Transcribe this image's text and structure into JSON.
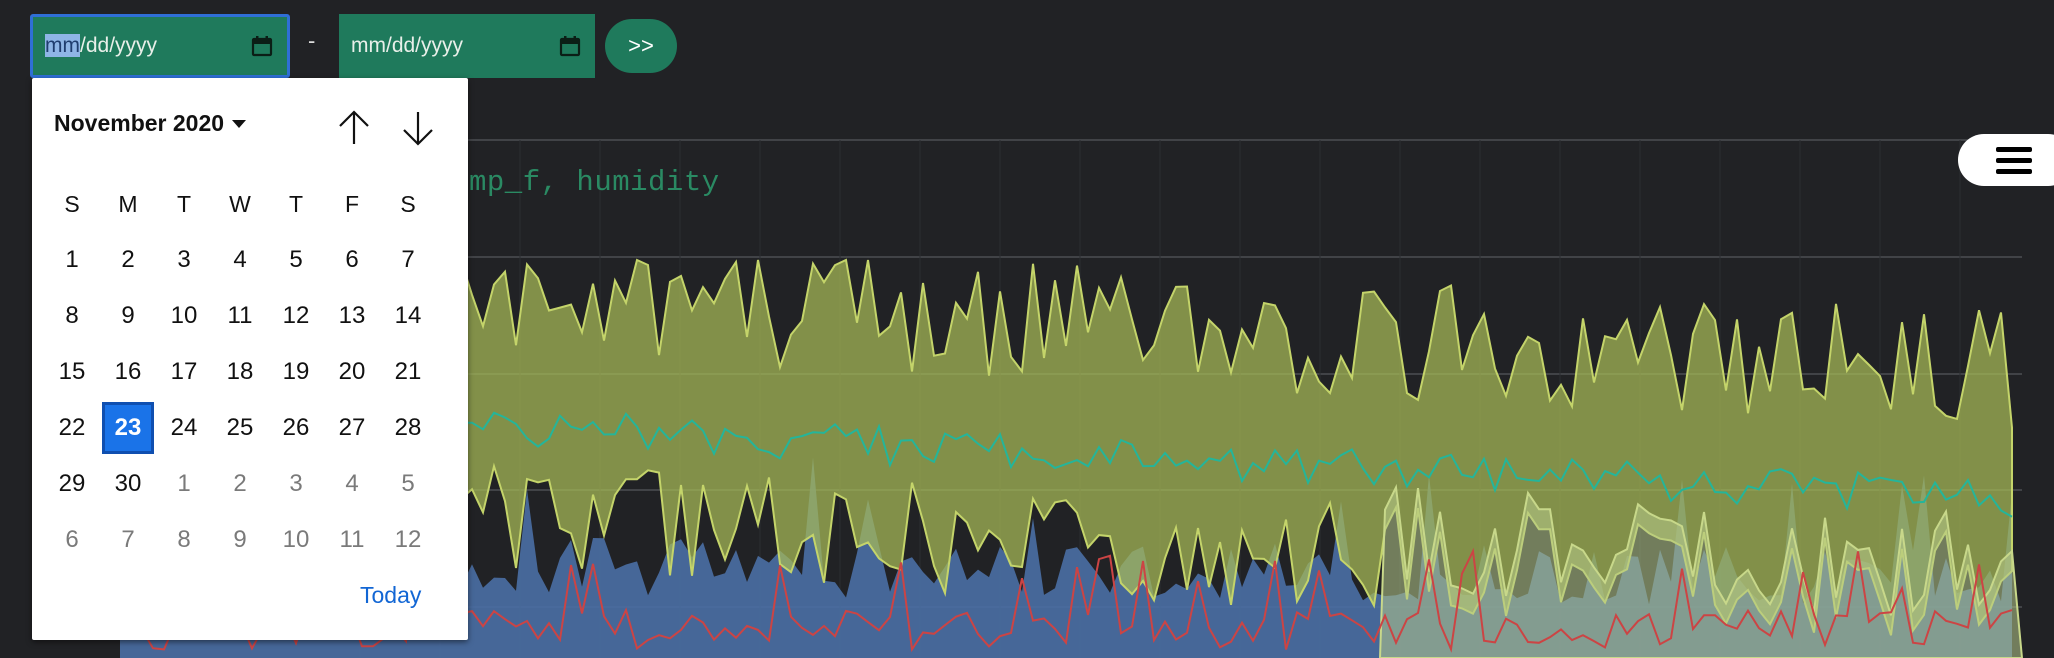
{
  "toolbar": {
    "start_placeholder_highlight": "mm",
    "start_placeholder_rest": "/dd/yyyy",
    "end_placeholder": "mm/dd/yyyy",
    "range_separator": "-",
    "go_label": ">>"
  },
  "chart": {
    "title_fragment": "mp_f, humidity"
  },
  "calendar": {
    "month_label": "November 2020",
    "weekdays": [
      "S",
      "M",
      "T",
      "W",
      "T",
      "F",
      "S"
    ],
    "weeks": [
      [
        {
          "d": "1"
        },
        {
          "d": "2"
        },
        {
          "d": "3"
        },
        {
          "d": "4"
        },
        {
          "d": "5"
        },
        {
          "d": "6"
        },
        {
          "d": "7"
        }
      ],
      [
        {
          "d": "8"
        },
        {
          "d": "9"
        },
        {
          "d": "10"
        },
        {
          "d": "11"
        },
        {
          "d": "12"
        },
        {
          "d": "13"
        },
        {
          "d": "14"
        }
      ],
      [
        {
          "d": "15"
        },
        {
          "d": "16"
        },
        {
          "d": "17"
        },
        {
          "d": "18"
        },
        {
          "d": "19"
        },
        {
          "d": "20"
        },
        {
          "d": "21"
        }
      ],
      [
        {
          "d": "22"
        },
        {
          "d": "23",
          "selected": true
        },
        {
          "d": "24"
        },
        {
          "d": "25"
        },
        {
          "d": "26"
        },
        {
          "d": "27"
        },
        {
          "d": "28"
        }
      ],
      [
        {
          "d": "29"
        },
        {
          "d": "30"
        },
        {
          "d": "1",
          "muted": true
        },
        {
          "d": "2",
          "muted": true
        },
        {
          "d": "3",
          "muted": true
        },
        {
          "d": "4",
          "muted": true
        },
        {
          "d": "5",
          "muted": true
        }
      ],
      [
        {
          "d": "6",
          "muted": true
        },
        {
          "d": "7",
          "muted": true
        },
        {
          "d": "8",
          "muted": true
        },
        {
          "d": "9",
          "muted": true
        },
        {
          "d": "10",
          "muted": true
        },
        {
          "d": "11",
          "muted": true
        },
        {
          "d": "12",
          "muted": true
        }
      ]
    ],
    "today_label": "Today"
  },
  "colors": {
    "accent_green": "#1f7a5c",
    "band_olive": "#a7bb57",
    "area_blue": "#4a6fa5",
    "line_teal": "#24b59a",
    "line_red": "#cc4444"
  },
  "icons": {
    "calendar": "calendar-icon",
    "menu": "hamburger-menu-icon",
    "prev": "arrow-up-icon",
    "next": "arrow-down-icon"
  }
}
